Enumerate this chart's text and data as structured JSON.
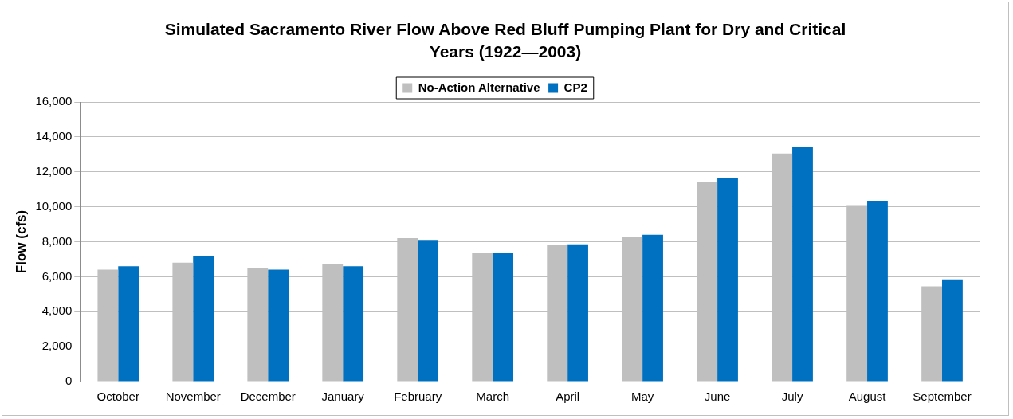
{
  "chart_data": {
    "type": "bar",
    "title": "Simulated Sacramento River Flow Above Red Bluff Pumping Plant for Dry and Critical Years (1922—2003)",
    "ylabel": "Flow (cfs)",
    "categories": [
      "October",
      "November",
      "December",
      "January",
      "February",
      "March",
      "April",
      "May",
      "June",
      "July",
      "August",
      "September"
    ],
    "series": [
      {
        "name": "No-Action Alternative",
        "color": "#bfbfbf",
        "values": [
          6400,
          6800,
          6500,
          6750,
          8200,
          7350,
          7800,
          8250,
          11400,
          13050,
          10100,
          5450
        ]
      },
      {
        "name": "CP2",
        "color": "#0070c0",
        "values": [
          6600,
          7200,
          6400,
          6600,
          8100,
          7350,
          7850,
          8400,
          11650,
          13400,
          10350,
          5850
        ]
      }
    ],
    "ylim": [
      0,
      16000
    ],
    "yticks": [
      0,
      {
        "value": 2000,
        "label": "2,000"
      },
      {
        "value": 4000,
        "label": "4,000"
      },
      {
        "value": 6000,
        "label": "6,000"
      },
      {
        "value": 8000,
        "label": "8,000"
      },
      {
        "value": 10000,
        "label": "10,000"
      },
      {
        "value": 12000,
        "label": "12,000"
      },
      {
        "value": 14000,
        "label": "14,000"
      },
      {
        "value": 16000,
        "label": "16,000"
      }
    ],
    "grid": "y",
    "legend": "top"
  }
}
